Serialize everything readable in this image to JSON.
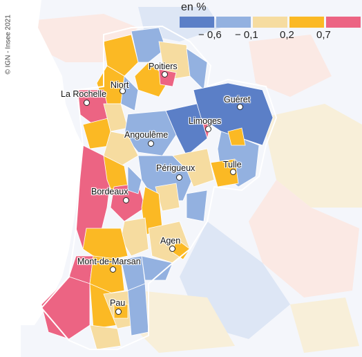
{
  "credit": "© IGN - Insee 2021",
  "legend": {
    "title": "en %",
    "ticks": [
      "− 0,6",
      "− 0,1",
      "0,2",
      "0,7"
    ],
    "colors": [
      "#5b7fc7",
      "#93b1e0",
      "#f6dca0",
      "#fbb924",
      "#ec6483"
    ]
  },
  "colors": {
    "sea": "#ffffff",
    "outside_light": "#fbe9e4",
    "outside_blue": "#dde6f5",
    "outside_cream": "#f8efd9",
    "boundary": "#ffffff"
  },
  "cities": [
    {
      "name": "Poitiers"
    },
    {
      "name": "Niort"
    },
    {
      "name": "La Rochelle"
    },
    {
      "name": "Guéret"
    },
    {
      "name": "Limoges"
    },
    {
      "name": "Angoulême"
    },
    {
      "name": "Tulle"
    },
    {
      "name": "Périgueux"
    },
    {
      "name": "Bordeaux"
    },
    {
      "name": "Agen"
    },
    {
      "name": "Mont-de-Marsan"
    },
    {
      "name": "Pau"
    }
  ]
}
